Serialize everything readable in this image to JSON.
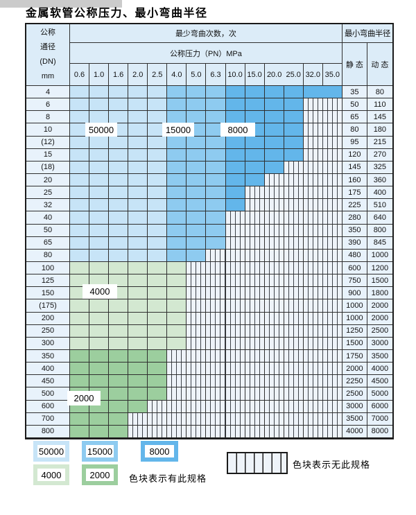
{
  "title": "金属软管公称压力、最小弯曲半径",
  "table": {
    "header": {
      "dn_lines": "公称\n通径\n(DN)\nmm",
      "bend_cycles": "最少弯曲次数，次",
      "pressure": "公称压力（PN）MPa",
      "radius": "最小弯曲半径",
      "static": "静 态",
      "dynamic": "动 态",
      "pressures": [
        "0.6",
        "1.0",
        "1.6",
        "2.0",
        "2.5",
        "4.0",
        "5.0",
        "6.3",
        "10.0",
        "15.0",
        "20.0",
        "25.0",
        "32.0",
        "35.0"
      ]
    },
    "rows": [
      {
        "dn": "4",
        "colored": 14,
        "static": "35",
        "dynamic": "80"
      },
      {
        "dn": "6",
        "colored": 12,
        "static": "50",
        "dynamic": "110"
      },
      {
        "dn": "8",
        "colored": 12,
        "static": "65",
        "dynamic": "145"
      },
      {
        "dn": "10",
        "colored": 12,
        "static": "80",
        "dynamic": "180"
      },
      {
        "dn": "(12)",
        "colored": 12,
        "static": "95",
        "dynamic": "215"
      },
      {
        "dn": "15",
        "colored": 12,
        "static": "120",
        "dynamic": "270"
      },
      {
        "dn": "(18)",
        "colored": 11,
        "static": "145",
        "dynamic": "325"
      },
      {
        "dn": "20",
        "colored": 10,
        "static": "160",
        "dynamic": "360"
      },
      {
        "dn": "25",
        "colored": 9,
        "static": "175",
        "dynamic": "400"
      },
      {
        "dn": "32",
        "colored": 9,
        "static": "225",
        "dynamic": "510"
      },
      {
        "dn": "40",
        "colored": 8,
        "static": "280",
        "dynamic": "640"
      },
      {
        "dn": "50",
        "colored": 8,
        "static": "350",
        "dynamic": "800"
      },
      {
        "dn": "65",
        "colored": 8,
        "static": "390",
        "dynamic": "845"
      },
      {
        "dn": "80",
        "colored": 7,
        "static": "480",
        "dynamic": "1000"
      },
      {
        "dn": "100",
        "colored": 6,
        "static": "600",
        "dynamic": "1200"
      },
      {
        "dn": "125",
        "colored": 6,
        "static": "750",
        "dynamic": "1500"
      },
      {
        "dn": "150",
        "colored": 6,
        "static": "900",
        "dynamic": "1800"
      },
      {
        "dn": "(175)",
        "colored": 6,
        "static": "1000",
        "dynamic": "2000"
      },
      {
        "dn": "200",
        "colored": 6,
        "static": "1000",
        "dynamic": "2000"
      },
      {
        "dn": "250",
        "colored": 6,
        "static": "1250",
        "dynamic": "2500"
      },
      {
        "dn": "300",
        "colored": 6,
        "static": "1500",
        "dynamic": "3000"
      },
      {
        "dn": "350",
        "colored": 5,
        "static": "1750",
        "dynamic": "3500"
      },
      {
        "dn": "400",
        "colored": 5,
        "static": "2000",
        "dynamic": "4000"
      },
      {
        "dn": "450",
        "colored": 5,
        "static": "2250",
        "dynamic": "4500"
      },
      {
        "dn": "500",
        "colored": 5,
        "static": "2500",
        "dynamic": "5000"
      },
      {
        "dn": "600",
        "colored": 4,
        "static": "3000",
        "dynamic": "6000"
      },
      {
        "dn": "700",
        "colored": 3,
        "static": "3500",
        "dynamic": "7000"
      },
      {
        "dn": "800",
        "colored": 3,
        "static": "4000",
        "dynamic": "8000"
      }
    ],
    "color_rules": {
      "blue_rows_count": 14,
      "light_blue_max_col": 4,
      "medium_blue_max_col": 7,
      "light_green_last_row": 20
    }
  },
  "cycle_labels": {
    "l50000": "50000",
    "l15000": "15000",
    "l8000": "8000",
    "l4000": "4000",
    "l2000": "2000"
  },
  "legend": {
    "s50000": "50000",
    "s15000": "15000",
    "s8000": "8000",
    "s4000": "4000",
    "s2000": "2000",
    "has_spec": "色块表示有此规格",
    "no_spec": "色块表示无此规格"
  },
  "colors": {
    "cycles_50000": "#c7e4f7",
    "cycles_15000": "#8ecbf0",
    "cycles_8000": "#63b6ea",
    "cycles_4000": "#d3e8d1",
    "cycles_2000": "#9cce9e",
    "header_bg": "#dcecf8",
    "hatch_bg": "#eef3f9"
  }
}
